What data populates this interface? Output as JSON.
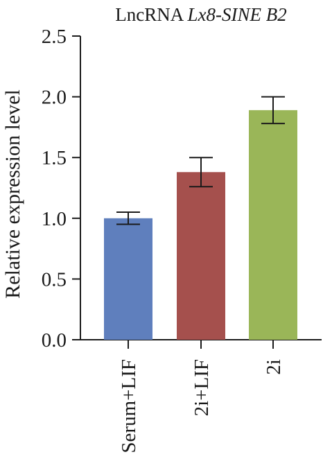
{
  "chart_data": {
    "type": "bar",
    "title_prefix": "LncRNA ",
    "title_italic": "Lx8-SINE B2",
    "ylabel": "Relative expression level",
    "xlabel": "",
    "ylim": [
      0,
      2.5
    ],
    "yticks": [
      "0.0",
      "0.5",
      "1.0",
      "1.5",
      "2.0",
      "2.5"
    ],
    "categories": [
      "Serum+LIF",
      "2i+LIF",
      "2i"
    ],
    "values": [
      1.0,
      1.38,
      1.89
    ],
    "errors": [
      0.05,
      0.12,
      0.11
    ],
    "colors": [
      "#5f7fbd",
      "#a5504d",
      "#9ab658"
    ],
    "grid": false,
    "legend": "none"
  }
}
